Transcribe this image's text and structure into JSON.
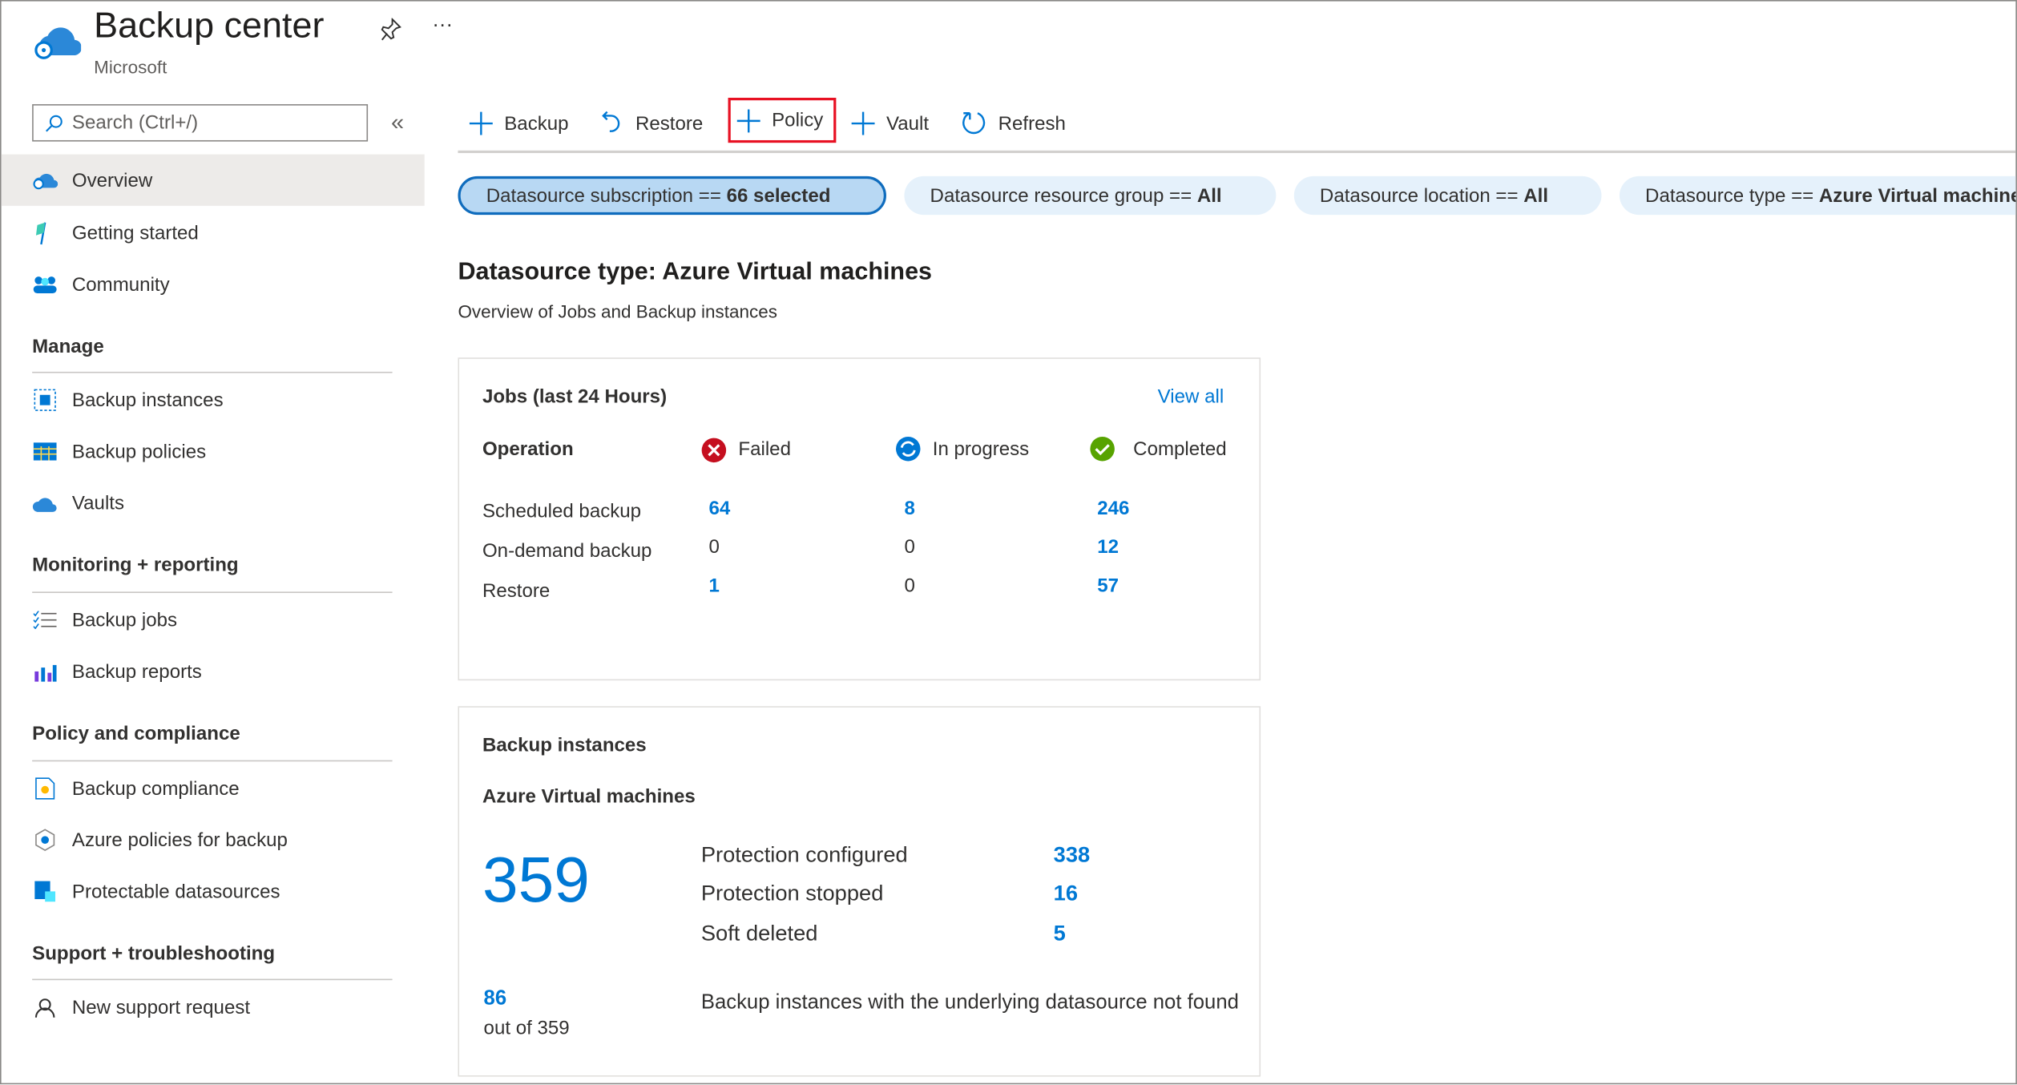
{
  "header": {
    "title": "Backup center",
    "subtitle": "Microsoft",
    "pin_icon": "pin-icon",
    "more_icon": "ellipsis-icon",
    "more_label": "···"
  },
  "sidebar": {
    "search_placeholder": "Search (Ctrl+/)",
    "collapse_label": "«",
    "items": [
      {
        "label": "Overview",
        "icon": "backup-center-icon",
        "selected": true
      },
      {
        "label": "Getting started",
        "icon": "flag-icon"
      },
      {
        "label": "Community",
        "icon": "community-icon"
      }
    ],
    "sections": [
      {
        "title": "Manage",
        "items": [
          {
            "label": "Backup instances",
            "icon": "backup-instances-icon"
          },
          {
            "label": "Backup policies",
            "icon": "policies-icon"
          },
          {
            "label": "Vaults",
            "icon": "vault-icon"
          }
        ]
      },
      {
        "title": "Monitoring + reporting",
        "items": [
          {
            "label": "Backup jobs",
            "icon": "jobs-list-icon"
          },
          {
            "label": "Backup reports",
            "icon": "reports-chart-icon"
          }
        ]
      },
      {
        "title": "Policy and compliance",
        "items": [
          {
            "label": "Backup compliance",
            "icon": "compliance-icon"
          },
          {
            "label": "Azure policies for backup",
            "icon": "azure-policy-icon"
          },
          {
            "label": "Protectable datasources",
            "icon": "datasource-icon"
          }
        ]
      },
      {
        "title": "Support + troubleshooting",
        "items": [
          {
            "label": "New support request",
            "icon": "support-person-icon"
          }
        ]
      }
    ]
  },
  "toolbar": {
    "backup": "Backup",
    "restore": "Restore",
    "policy": "Policy",
    "vault": "Vault",
    "refresh": "Refresh",
    "highlight_color": "#e81123"
  },
  "filters": [
    {
      "label": "Datasource subscription == ",
      "value": "66 selected",
      "active": true
    },
    {
      "label": "Datasource resource group == ",
      "value": "All"
    },
    {
      "label": "Datasource location == ",
      "value": "All"
    },
    {
      "label": "Datasource type == ",
      "value": "Azure Virtual machines"
    }
  ],
  "main": {
    "heading": "Datasource type: Azure Virtual machines",
    "subheading": "Overview of Jobs and Backup instances"
  },
  "jobs": {
    "title": "Jobs (last 24 Hours)",
    "view_all": "View all",
    "columns": [
      "Operation",
      "Failed",
      "In progress",
      "Completed"
    ],
    "rows": [
      {
        "op": "Scheduled backup",
        "failed": "64",
        "in_progress": "8",
        "completed": "246"
      },
      {
        "op": "On-demand backup",
        "failed": "0",
        "in_progress": "0",
        "completed": "12"
      },
      {
        "op": "Restore",
        "failed": "1",
        "in_progress": "0",
        "completed": "57"
      }
    ]
  },
  "instances": {
    "title": "Backup instances",
    "subtitle": "Azure Virtual machines",
    "total": "359",
    "stats": [
      {
        "label": "Protection configured",
        "value": "338"
      },
      {
        "label": "Protection stopped",
        "value": "16"
      },
      {
        "label": "Soft deleted",
        "value": "5"
      }
    ],
    "notfound_count": "86",
    "notfound_of": "out of 359",
    "notfound_label": "Backup instances with the underlying datasource not found"
  },
  "colors": {
    "accent": "#0078d4",
    "failed": "#c50f1f",
    "completed": "#57a300",
    "selected_bg": "#edebe9"
  }
}
